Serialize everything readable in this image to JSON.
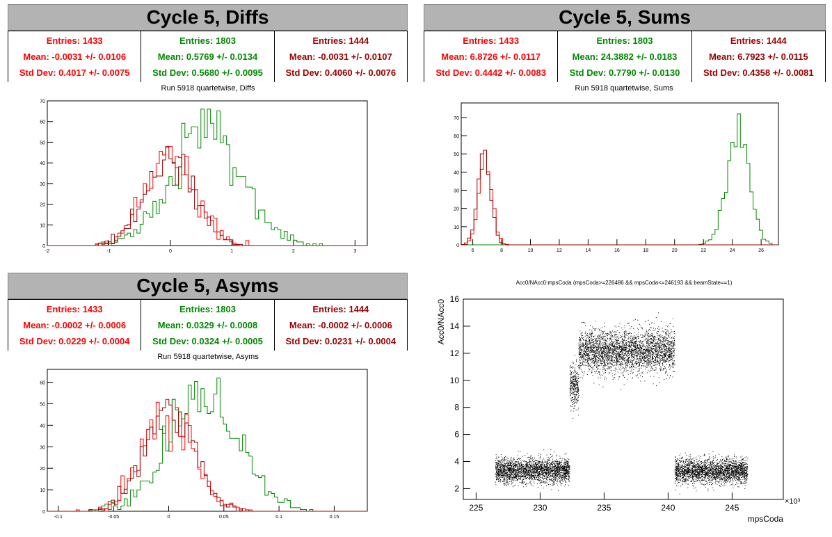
{
  "colors": {
    "red": "#ff0000",
    "green": "#008800",
    "darkred": "#990000",
    "title_bg": "#b3b3b3"
  },
  "panels": {
    "diffs": {
      "title": "Cycle 5, Diffs",
      "plot_title": "Run 5918 quartetwise, Diffs",
      "stats": [
        {
          "entries": "Entries: 1433",
          "mean": "Mean: -0.0031 +/- 0.0106",
          "std": "Std Dev: 0.4017 +/- 0.0075",
          "color": "#ff0000"
        },
        {
          "entries": "Entries: 1803",
          "mean": "Mean: 0.5769 +/- 0.0134",
          "std": "Std Dev: 0.5680 +/- 0.0095",
          "color": "#008800"
        },
        {
          "entries": "Entries: 1444",
          "mean": "Mean: -0.0031 +/- 0.0107",
          "std": "Std Dev: 0.4060 +/- 0.0076",
          "color": "#990000"
        }
      ]
    },
    "sums": {
      "title": "Cycle 5, Sums",
      "plot_title": "Run 5918 quartetwise, Sums",
      "stats": [
        {
          "entries": "Entries: 1433",
          "mean": "Mean: 6.8726 +/- 0.0117",
          "std": "Std Dev: 0.4442 +/- 0.0083",
          "color": "#ff0000"
        },
        {
          "entries": "Entries: 1803",
          "mean": "Mean: 24.3882 +/- 0.0183",
          "std": "Std Dev: 0.7790 +/- 0.0130",
          "color": "#008800"
        },
        {
          "entries": "Entries: 1444",
          "mean": "Mean: 6.7923 +/- 0.0115",
          "std": "Std Dev: 0.4358 +/- 0.0081",
          "color": "#990000"
        }
      ]
    },
    "asyms": {
      "title": "Cycle 5, Asyms",
      "plot_title": "Run 5918 quartetwise, Asyms",
      "stats": [
        {
          "entries": "Entries: 1433",
          "mean": "Mean: -0.0002 +/- 0.0006",
          "std": "Std Dev: 0.0229 +/- 0.0004",
          "color": "#ff0000"
        },
        {
          "entries": "Entries: 1803",
          "mean": "Mean: 0.0329 +/- 0.0008",
          "std": "Std Dev: 0.0324 +/- 0.0005",
          "color": "#008800"
        },
        {
          "entries": "Entries: 1444",
          "mean": "Mean: -0.0002 +/- 0.0006",
          "std": "Std Dev: 0.0231 +/- 0.0004",
          "color": "#990000"
        }
      ]
    },
    "scatter": {
      "plot_title": "Acc0/NAcc0:mpsCoda (mpsCoda>=226486 && mpsCoda<=246193 && beamState==1)"
    }
  },
  "chart_data": [
    {
      "type": "histogram",
      "title": "Run 5918 quartetwise, Diffs",
      "xlim": [
        -2,
        3.2
      ],
      "ylim": [
        0,
        70
      ],
      "xticks": [
        -2,
        -1,
        0,
        1,
        2,
        3
      ],
      "yticks": [
        0,
        10,
        20,
        30,
        40,
        50,
        60,
        70
      ],
      "series": [
        {
          "color": "#ff0000",
          "mean": -0.0031,
          "std": 0.4017,
          "entries": 1433,
          "peak": 48
        },
        {
          "color": "#008800",
          "mean": 0.5769,
          "std": 0.568,
          "entries": 1803,
          "peak": 66
        },
        {
          "color": "#990000",
          "mean": -0.0031,
          "std": 0.406,
          "entries": 1444,
          "peak": 48
        }
      ]
    },
    {
      "type": "histogram",
      "title": "Run 5918 quartetwise, Sums",
      "xlim": [
        5.2,
        27.2
      ],
      "ylim": [
        0,
        78
      ],
      "xticks": [
        6,
        8,
        10,
        12,
        14,
        16,
        18,
        20,
        22,
        24,
        26
      ],
      "yticks": [
        0,
        10,
        20,
        30,
        40,
        50,
        60,
        70
      ],
      "series": [
        {
          "color": "#ff0000",
          "mean": 6.8726,
          "std": 0.4442,
          "entries": 1433,
          "peak": 52
        },
        {
          "color": "#008800",
          "mean": 24.3882,
          "std": 0.779,
          "entries": 1803,
          "peak": 72
        },
        {
          "color": "#990000",
          "mean": 6.7923,
          "std": 0.4358,
          "entries": 1444,
          "peak": 52
        }
      ]
    },
    {
      "type": "histogram",
      "title": "Run 5918 quartetwise, Asyms",
      "xlim": [
        -0.11,
        0.18
      ],
      "ylim": [
        0,
        66
      ],
      "xticks": [
        -0.1,
        -0.05,
        0,
        0.05,
        0.1,
        0.15
      ],
      "xticklabels": [
        "-0.1",
        "-0.05",
        "0",
        "0.05",
        "0.1",
        "0.15"
      ],
      "yticks": [
        0,
        10,
        20,
        30,
        40,
        50,
        60
      ],
      "series": [
        {
          "color": "#ff0000",
          "mean": -0.0002,
          "std": 0.0229,
          "entries": 1433,
          "peak": 52
        },
        {
          "color": "#008800",
          "mean": 0.0329,
          "std": 0.0324,
          "entries": 1803,
          "peak": 62
        },
        {
          "color": "#990000",
          "mean": -0.0002,
          "std": 0.0231,
          "entries": 1444,
          "peak": 52
        }
      ]
    },
    {
      "type": "scatter",
      "title": "Acc0/NAcc0:mpsCoda (mpsCoda>=226486 && mpsCoda<=246193 && beamState==1)",
      "xlabel": "mpsCoda",
      "ylabel": "Acc0/NAcc0",
      "xscale_label": "×10³",
      "xlim": [
        224,
        249
      ],
      "ylim": [
        1.2,
        16
      ],
      "xticks": [
        225,
        230,
        235,
        240,
        245
      ],
      "yticks": [
        2,
        4,
        6,
        8,
        10,
        12,
        14,
        16
      ],
      "clusters": [
        {
          "x": [
            226.5,
            232.3
          ],
          "y_center": 3.35,
          "y_spread": 0.45
        },
        {
          "x": [
            232.3,
            233.0
          ],
          "y_center": 9.6,
          "y_spread": 0.8
        },
        {
          "x": [
            233.0,
            240.5
          ],
          "y_center": 12.2,
          "y_spread": 0.8
        },
        {
          "x": [
            240.5,
            246.2
          ],
          "y_center": 3.3,
          "y_spread": 0.45
        }
      ]
    }
  ]
}
